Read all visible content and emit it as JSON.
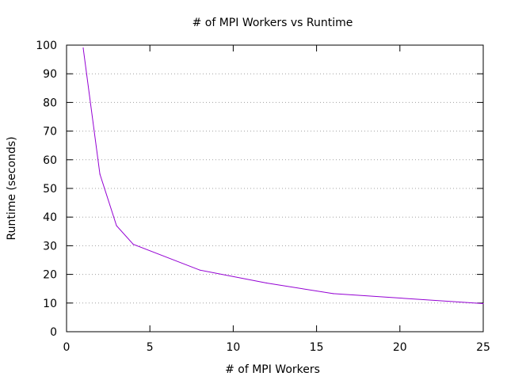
{
  "chart_data": {
    "type": "line",
    "title": "# of MPI Workers vs Runtime",
    "xlabel": "# of MPI Workers",
    "ylabel": "Runtime (seconds)",
    "xlim": [
      0,
      25
    ],
    "ylim": [
      0,
      100
    ],
    "xticks": [
      0,
      5,
      10,
      15,
      20,
      25
    ],
    "yticks": [
      0,
      10,
      20,
      30,
      40,
      50,
      60,
      70,
      80,
      90,
      100
    ],
    "grid": "horizontal-dotted",
    "legend": "none",
    "series": [
      {
        "color": "#9400d3",
        "x": [
          1,
          2,
          3,
          4,
          8,
          12,
          16,
          25
        ],
        "y": [
          99,
          55,
          37,
          30.5,
          21.5,
          17,
          13.3,
          9.8
        ]
      }
    ]
  }
}
